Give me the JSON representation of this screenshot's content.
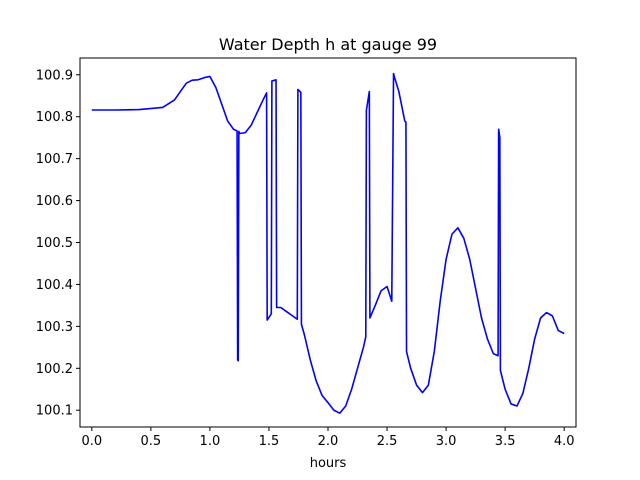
{
  "chart_data": {
    "type": "line",
    "title": "Water Depth h at gauge 99",
    "xlabel": "hours",
    "ylabel": "",
    "xlim": [
      -0.1,
      4.1
    ],
    "ylim": [
      100.06,
      100.94
    ],
    "xticks": [
      0.0,
      0.5,
      1.0,
      1.5,
      2.0,
      2.5,
      3.0,
      3.5,
      4.0
    ],
    "xtick_labels": [
      "0.0",
      "0.5",
      "1.0",
      "1.5",
      "2.0",
      "2.5",
      "3.0",
      "3.5",
      "4.0"
    ],
    "yticks": [
      100.1,
      100.2,
      100.3,
      100.4,
      100.5,
      100.6,
      100.7,
      100.8,
      100.9
    ],
    "ytick_labels": [
      "100.1",
      "100.2",
      "100.3",
      "100.4",
      "100.5",
      "100.6",
      "100.7",
      "100.8",
      "100.9"
    ],
    "grid": false,
    "series_color": "#0000ff",
    "series": [
      {
        "x": [
          0.0,
          0.2,
          0.4,
          0.6,
          0.7,
          0.75,
          0.8,
          0.85,
          0.9,
          0.95,
          1.0,
          1.05,
          1.1,
          1.15,
          1.2,
          1.23,
          1.235,
          1.24,
          1.245,
          1.25,
          1.3,
          1.35,
          1.4,
          1.45,
          1.48,
          1.485,
          1.52,
          1.525,
          1.56,
          1.565,
          1.6,
          1.65,
          1.7,
          1.74,
          1.745,
          1.77,
          1.775,
          1.8,
          1.85,
          1.9,
          1.95,
          2.0,
          2.05,
          2.1,
          2.15,
          2.2,
          2.25,
          2.3,
          2.32,
          2.325,
          2.35,
          2.355,
          2.4,
          2.45,
          2.5,
          2.54,
          2.555,
          2.56,
          2.6,
          2.65,
          2.66,
          2.665,
          2.7,
          2.75,
          2.8,
          2.85,
          2.9,
          2.95,
          3.0,
          3.05,
          3.1,
          3.15,
          3.2,
          3.25,
          3.3,
          3.35,
          3.4,
          3.44,
          3.445,
          3.455,
          3.46,
          3.5,
          3.55,
          3.6,
          3.65,
          3.7,
          3.75,
          3.8,
          3.85,
          3.9,
          3.95,
          4.0
        ],
        "y": [
          100.816,
          100.816,
          100.817,
          100.822,
          100.84,
          100.86,
          100.88,
          100.887,
          100.888,
          100.893,
          100.896,
          100.87,
          100.83,
          100.79,
          100.77,
          100.766,
          100.22,
          100.218,
          100.765,
          100.76,
          100.762,
          100.78,
          100.81,
          100.84,
          100.857,
          100.315,
          100.33,
          100.885,
          100.888,
          100.345,
          100.345,
          100.335,
          100.325,
          100.317,
          100.865,
          100.858,
          100.305,
          100.28,
          100.22,
          100.17,
          100.135,
          100.118,
          100.1,
          100.093,
          100.11,
          100.15,
          100.2,
          100.25,
          100.275,
          100.815,
          100.86,
          100.32,
          100.35,
          100.385,
          100.395,
          100.36,
          100.903,
          100.897,
          100.86,
          100.79,
          100.787,
          100.24,
          100.2,
          100.16,
          100.142,
          100.16,
          100.24,
          100.36,
          100.46,
          100.52,
          100.535,
          100.51,
          100.46,
          100.39,
          100.32,
          100.27,
          100.235,
          100.23,
          100.77,
          100.75,
          100.195,
          100.15,
          100.115,
          100.11,
          100.14,
          100.2,
          100.27,
          100.32,
          100.333,
          100.325,
          100.29,
          100.283
        ]
      }
    ]
  }
}
